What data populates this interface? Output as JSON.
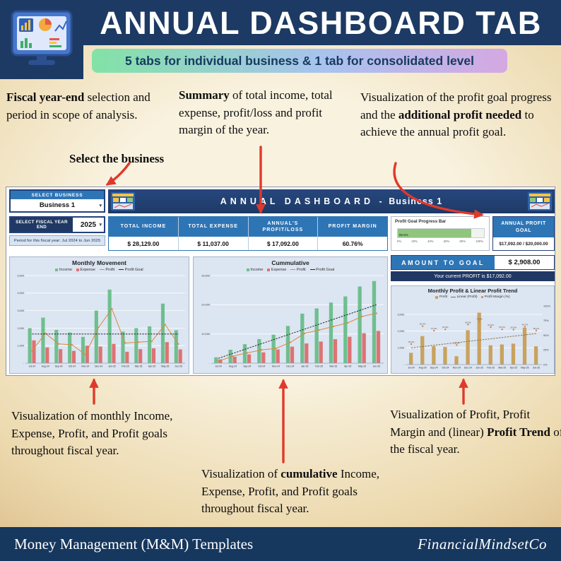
{
  "header": {
    "title": "ANNUAL DASHBOARD TAB",
    "subtitle": "5 tabs for individual business & 1 tab for consolidated level"
  },
  "icons": {
    "logo": "dashboard-monitor-icon",
    "thumbnails": "dashboard-thumbnail-icon",
    "dropdown": "chevron-down-icon",
    "arrows": "red-annotation-arrow"
  },
  "colors": {
    "navy": "#1c3a63",
    "dashboard_navy": "#203864",
    "panel_blue": "#2e75b6",
    "tile_blue": "#dce5f2",
    "income_green": "#6fbf8f",
    "expense_red": "#dd7373",
    "profit_orange": "#d98a3d",
    "trend_tan": "#c8a25e",
    "progress_green": "#8fc57d",
    "arrow_red": "#e0392b",
    "pill_gradient_start": "#82e2a6",
    "pill_gradient_end": "#d5a8e2"
  },
  "annotations": {
    "fiscal": {
      "parts": [
        {
          "text": "Fiscal year-end",
          "bold": true
        },
        {
          "text": " selection and period in scope of analysis.",
          "bold": false
        }
      ]
    },
    "select_business": "Select the business",
    "summary": {
      "parts": [
        {
          "text": "Summary",
          "bold": true
        },
        {
          "text": " of total income, total expense, profit/loss and profit margin of the year.",
          "bold": false
        }
      ]
    },
    "goal": {
      "parts": [
        {
          "text": "Visualization of the profit goal progress and the ",
          "bold": false
        },
        {
          "text": "additional profit needed",
          "bold": true
        },
        {
          "text": " to achieve the annual profit goal.",
          "bold": false
        }
      ]
    },
    "monthly": {
      "parts": [
        {
          "text": "Visualization of monthly  Income, Expense, Profit, and Profit goals throughout fiscal year.",
          "bold": false
        }
      ]
    },
    "cumulative": {
      "parts": [
        {
          "text": "Visualization of ",
          "bold": false
        },
        {
          "text": "cumulative",
          "bold": true
        },
        {
          "text": " Income, Expense, Profit, and Profit goals throughout fiscal year.",
          "bold": false
        }
      ]
    },
    "trend": {
      "parts": [
        {
          "text": "Visualization of Profit, Profit Margin and (linear) ",
          "bold": false
        },
        {
          "text": "Profit Trend",
          "bold": true
        },
        {
          "text": " of the fiscal year.",
          "bold": false
        }
      ]
    }
  },
  "dashboard": {
    "select_business": {
      "header": "SELECT BUSINESS",
      "value": "Business 1"
    },
    "title": {
      "main": "ANNUAL DASHBOARD",
      "sep": "-",
      "sub": "Business 1"
    },
    "fiscal": {
      "label": "SELECT FISCAL YEAR END",
      "year": "2025",
      "period": "Period for this fiscal year: Jul 2024 to Jun 2025"
    },
    "kpis": [
      {
        "label": "TOTAL INCOME",
        "value": "$ 28,129.00"
      },
      {
        "label": "TOTAL EXPENSE",
        "value": "$ 11,037.00"
      },
      {
        "label": "ANNUAL'S PROFIT/LOSS",
        "value": "$ 17,092.00"
      },
      {
        "label": "PROFIT MARGIN",
        "value": "60.76%"
      }
    ],
    "progress": {
      "title": "Profit Goal Progress Bar",
      "value": 85.5,
      "value_label": "85.5%",
      "ticks": [
        "0%",
        "20%",
        "40%",
        "60%",
        "80%",
        "100%"
      ]
    },
    "annual_goal": {
      "label": "ANNUAL PROFIT GOAL",
      "value": "$17,092.00 / $20,000.00"
    },
    "amount_to_goal": {
      "label": "AMOUNT TO GOAL",
      "value": "$ 2,908.00"
    },
    "current_profit": "Your current PROFIT is $17,092.00"
  },
  "chart_data": [
    {
      "id": "monthly_movement",
      "type": "bar",
      "title": "Monthly Movement",
      "categories": [
        "Jul-24",
        "Aug-24",
        "Sep-24",
        "Oct-24",
        "Nov-24",
        "Dec-24",
        "Jan-25",
        "Feb-25",
        "Mar-25",
        "Apr-25",
        "May-25",
        "Jun-25"
      ],
      "ylim": [
        0,
        5000
      ],
      "yticks": [
        0,
        1000,
        2000,
        3000,
        4000,
        5000
      ],
      "ytick_labels": [
        "-",
        "1,000",
        "2,000",
        "3,000",
        "4,000",
        "5,000"
      ],
      "series": [
        {
          "name": "Income",
          "type": "bar",
          "color": "#6fbf8f",
          "values": [
            2000,
            2600,
            1900,
            1750,
            1500,
            3000,
            4200,
            1800,
            2000,
            2100,
            3400,
            1879
          ]
        },
        {
          "name": "Expense",
          "type": "bar",
          "color": "#dd7373",
          "values": [
            1300,
            900,
            800,
            700,
            1000,
            950,
            1100,
            650,
            800,
            850,
            1200,
            787
          ]
        },
        {
          "name": "Profit",
          "type": "line",
          "marker": true,
          "color": "#d98a3d",
          "values": [
            700,
            1700,
            1100,
            1050,
            500,
            2050,
            3100,
            1150,
            1200,
            1250,
            2200,
            1092
          ]
        },
        {
          "name": "Profit Goal",
          "type": "line",
          "dash": true,
          "color": "#262626",
          "values": [
            1667,
            1667,
            1667,
            1667,
            1667,
            1667,
            1667,
            1667,
            1667,
            1667,
            1667,
            1667
          ]
        }
      ]
    },
    {
      "id": "cumulative",
      "type": "bar",
      "title": "Cummulative",
      "categories": [
        "Jul-24",
        "Aug-24",
        "Sep-24",
        "Oct-24",
        "Nov-24",
        "Dec-24",
        "Jan-25",
        "Feb-25",
        "Mar-25",
        "Apr-25",
        "May-25",
        "Jun-25"
      ],
      "ylim": [
        0,
        30000
      ],
      "yticks": [
        0,
        10000,
        20000,
        30000
      ],
      "ytick_labels": [
        "-",
        "10,000",
        "20,000",
        "30,000"
      ],
      "series": [
        {
          "name": "Income",
          "type": "bar",
          "color": "#6fbf8f",
          "values": [
            2000,
            4600,
            6500,
            8250,
            9750,
            12750,
            16950,
            18750,
            20750,
            22850,
            26250,
            28129
          ]
        },
        {
          "name": "Expense",
          "type": "bar",
          "color": "#dd7373",
          "values": [
            1300,
            2200,
            3000,
            3700,
            4700,
            5650,
            6750,
            7400,
            8200,
            9050,
            10250,
            11037
          ]
        },
        {
          "name": "Profit",
          "type": "line",
          "marker": true,
          "color": "#d98a3d",
          "values": [
            700,
            2400,
            3500,
            4550,
            5050,
            7100,
            10200,
            11350,
            12550,
            13800,
            16000,
            17092
          ]
        },
        {
          "name": "Profit Goal",
          "type": "line",
          "dash": true,
          "color": "#262626",
          "values": [
            1667,
            3333,
            5000,
            6667,
            8333,
            10000,
            11667,
            13333,
            15000,
            16667,
            18333,
            20000
          ]
        }
      ]
    },
    {
      "id": "profit_trend",
      "type": "bar",
      "title": "Monthly Profit & Linear Profit Trend",
      "categories": [
        "Jul-24",
        "Aug-24",
        "Sep-24",
        "Oct-24",
        "Nov-24",
        "Dec-24",
        "Jan-25",
        "Feb-25",
        "Mar-25",
        "Apr-25",
        "May-25",
        "Jun-25"
      ],
      "ylim": [
        0,
        3500
      ],
      "yticks": [
        0,
        1000,
        2000,
        3000
      ],
      "ytick_labels": [
        "-",
        "1,000",
        "2,000",
        "3,000"
      ],
      "y2lim": [
        0,
        100
      ],
      "y2ticks": [
        0,
        25,
        50,
        75,
        100
      ],
      "y2tick_labels": [
        "0%",
        "25%",
        "50%",
        "75%",
        "100%"
      ],
      "series": [
        {
          "name": "Profit",
          "type": "bar",
          "color": "#c8a25e",
          "values": [
            700,
            1700,
            1100,
            1050,
            500,
            2050,
            3100,
            1150,
            1200,
            1250,
            2200,
            1092
          ]
        },
        {
          "name": "Linear (Profit)",
          "type": "line",
          "dash": true,
          "color": "#8c6f3f",
          "values": [
            1000,
            1077,
            1155,
            1232,
            1309,
            1386,
            1464,
            1541,
            1618,
            1695,
            1773,
            1850
          ]
        },
        {
          "name": "Profit Margin (%)",
          "type": "point",
          "axis": 2,
          "color": "#e07b39",
          "values": [
            35.0,
            65.4,
            57.9,
            60.0,
            33.3,
            68.3,
            73.8,
            63.9,
            60.0,
            59.5,
            64.7,
            58.1
          ],
          "labels": [
            "35.0%",
            "65.4%",
            "57.9%",
            "60.0%",
            "33.3%",
            "68.3%",
            "73.8%",
            "63.9%",
            "60.0%",
            "59.5%",
            "64.7%",
            "58.1%"
          ]
        }
      ]
    }
  ],
  "footer": {
    "left": "Money Management (M&M) Templates",
    "right": "FinancialMindsetCo"
  }
}
